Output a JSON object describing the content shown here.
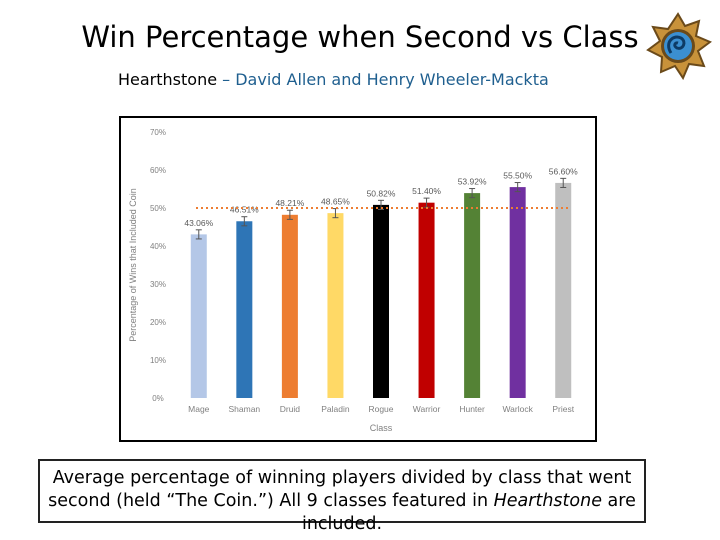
{
  "slide": {
    "title": "Win Percentage when Second vs Class",
    "subtitle_title": "Hearthstone",
    "subtitle_dash": " – ",
    "subtitle_authors": "David Allen and Henry Wheeler-Mackta",
    "logo_icon": "hearthstone-logo-icon"
  },
  "caption": {
    "part1": "Average percentage of winning players divided by class that went second (held “The Coin.”) All 9 classes featured in ",
    "italic": "Hearthstone",
    "part2": " are included."
  },
  "chart_data": {
    "type": "bar",
    "xlabel": "Class",
    "ylabel": "Percentage of Wins that Included Coin",
    "ylim": [
      0,
      70
    ],
    "yticks": [
      "0%",
      "10%",
      "20%",
      "30%",
      "40%",
      "50%",
      "60%",
      "70%"
    ],
    "categories": [
      "Mage",
      "Shaman",
      "Druid",
      "Paladin",
      "Rogue",
      "Warrior",
      "Hunter",
      "Warlock",
      "Priest"
    ],
    "values": [
      43.06,
      46.51,
      48.21,
      48.65,
      50.82,
      51.4,
      53.92,
      55.5,
      56.6
    ],
    "labels": [
      "43.06%",
      "46.51%",
      "48.21%",
      "48.65%",
      "50.82%",
      "51.40%",
      "53.92%",
      "55.50%",
      "56.60%"
    ],
    "error": [
      1.2,
      1.2,
      1.2,
      1.2,
      1.2,
      1.2,
      1.2,
      1.2,
      1.2
    ],
    "colors": [
      "#b4c7e7",
      "#2e75b6",
      "#ed7d31",
      "#ffd966",
      "#000000",
      "#c00000",
      "#548235",
      "#7030a0",
      "#bfbfbf"
    ],
    "reference_line": {
      "value": 50,
      "color": "#ed7d31",
      "style": "dotted"
    },
    "grid": false,
    "legend": "none"
  }
}
